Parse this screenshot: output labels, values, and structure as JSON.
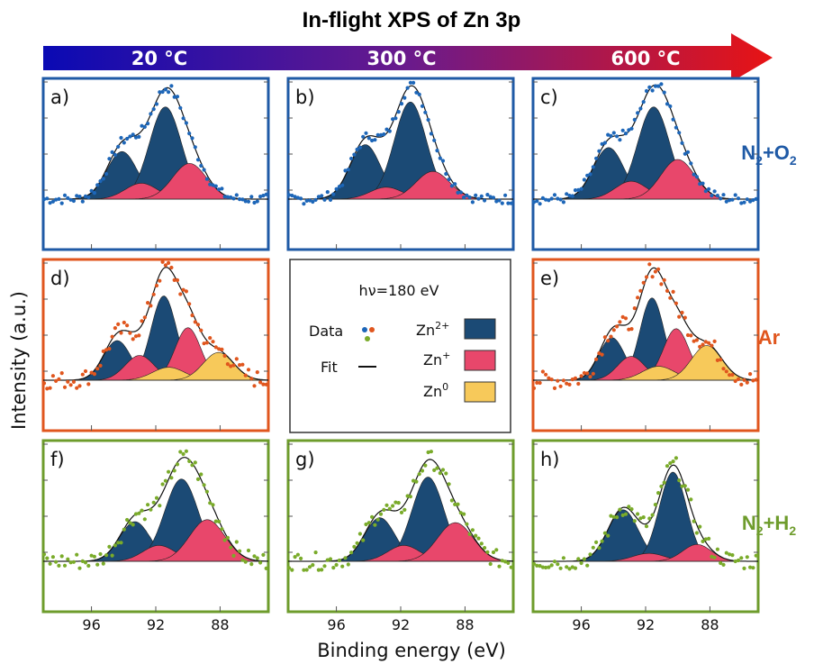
{
  "title": "In-flight XPS of Zn 3p",
  "temperatures": [
    "20 °C",
    "300 °C",
    "600 °C"
  ],
  "gradient_colors": [
    "#0a0ab4",
    "#6a1a8c",
    "#e81414"
  ],
  "atmospheres": [
    {
      "label": "N2+O2",
      "main": "N",
      "sub1": "2",
      "mid": "+O",
      "sub2": "2",
      "color": "#1f5aa6"
    },
    {
      "label": "Ar",
      "main": "Ar",
      "sub1": "",
      "mid": "",
      "sub2": "",
      "color": "#e0561e"
    },
    {
      "label": "N2+H2",
      "main": "N",
      "sub1": "2",
      "mid": "+H",
      "sub2": "2",
      "color": "#6e9c2c"
    }
  ],
  "xlabel": "Binding energy (eV)",
  "ylabel": "Intensity (a.u.)",
  "legend": {
    "photon_energy": "hν=180 eV",
    "data_label": "Data",
    "fit_label": "Fit",
    "zn2_label": "Zn",
    "zn2_sup": "2+",
    "zn1_label": "Zn",
    "zn1_sup": "+",
    "zn0_label": "Zn",
    "zn0_sup": "0"
  },
  "colors": {
    "zn2": "#1b4a75",
    "zn1": "#e8476b",
    "zn0": "#f7c95a",
    "fit": "#111111",
    "data_o2": "#1d66b8",
    "data_ar": "#e0561e",
    "data_h2": "#7aab2a"
  },
  "chart_data": {
    "type": "scatter",
    "xlim": [
      99,
      85
    ],
    "xticks": [
      96,
      92,
      88
    ],
    "grid": false,
    "panels": [
      {
        "label": "a)",
        "row": 0,
        "col": 0,
        "atmosphere": "N2+O2",
        "temperature": "20 °C",
        "xticks_shown": false,
        "peaks": [
          {
            "species": "Zn2+",
            "center": 94.1,
            "height": 0.48,
            "sigma": 0.95
          },
          {
            "species": "Zn2+",
            "center": 91.4,
            "height": 0.93,
            "sigma": 1.0
          },
          {
            "species": "Zn+",
            "center": 92.9,
            "height": 0.16,
            "sigma": 1.0
          },
          {
            "species": "Zn+",
            "center": 89.9,
            "height": 0.36,
            "sigma": 1.05
          }
        ]
      },
      {
        "label": "b)",
        "row": 0,
        "col": 1,
        "atmosphere": "N2+O2",
        "temperature": "300 °C",
        "xticks_shown": false,
        "peaks": [
          {
            "species": "Zn2+",
            "center": 94.2,
            "height": 0.55,
            "sigma": 0.95
          },
          {
            "species": "Zn2+",
            "center": 91.4,
            "height": 0.98,
            "sigma": 1.0
          },
          {
            "species": "Zn+",
            "center": 92.9,
            "height": 0.12,
            "sigma": 1.0
          },
          {
            "species": "Zn+",
            "center": 90.0,
            "height": 0.28,
            "sigma": 1.05
          }
        ]
      },
      {
        "label": "c)",
        "row": 0,
        "col": 2,
        "atmosphere": "N2+O2",
        "temperature": "600 °C",
        "xticks_shown": false,
        "peaks": [
          {
            "species": "Zn2+",
            "center": 94.3,
            "height": 0.52,
            "sigma": 0.95
          },
          {
            "species": "Zn2+",
            "center": 91.5,
            "height": 0.93,
            "sigma": 1.0
          },
          {
            "species": "Zn+",
            "center": 92.9,
            "height": 0.18,
            "sigma": 1.0
          },
          {
            "species": "Zn+",
            "center": 90.0,
            "height": 0.4,
            "sigma": 1.05
          }
        ]
      },
      {
        "label": "d)",
        "row": 1,
        "col": 0,
        "atmosphere": "Ar",
        "temperature": "20 °C",
        "xticks_shown": false,
        "peaks": [
          {
            "species": "Zn2+",
            "center": 94.4,
            "height": 0.4,
            "sigma": 0.85
          },
          {
            "species": "Zn2+",
            "center": 91.5,
            "height": 0.85,
            "sigma": 0.8
          },
          {
            "species": "Zn+",
            "center": 93.0,
            "height": 0.25,
            "sigma": 0.9
          },
          {
            "species": "Zn+",
            "center": 90.0,
            "height": 0.53,
            "sigma": 0.8
          },
          {
            "species": "Zn0",
            "center": 91.2,
            "height": 0.13,
            "sigma": 1.0
          },
          {
            "species": "Zn0",
            "center": 88.1,
            "height": 0.28,
            "sigma": 0.95
          }
        ]
      },
      {
        "label": "e)",
        "row": 1,
        "col": 2,
        "atmosphere": "Ar",
        "temperature": "600 °C",
        "xticks_shown": false,
        "peaks": [
          {
            "species": "Zn2+",
            "center": 94.1,
            "height": 0.43,
            "sigma": 0.8
          },
          {
            "species": "Zn2+",
            "center": 91.6,
            "height": 0.83,
            "sigma": 0.75
          },
          {
            "species": "Zn+",
            "center": 92.9,
            "height": 0.24,
            "sigma": 0.85
          },
          {
            "species": "Zn+",
            "center": 90.1,
            "height": 0.52,
            "sigma": 0.8
          },
          {
            "species": "Zn0",
            "center": 91.2,
            "height": 0.14,
            "sigma": 1.0
          },
          {
            "species": "Zn0",
            "center": 88.2,
            "height": 0.35,
            "sigma": 0.95
          }
        ]
      },
      {
        "label": "f)",
        "row": 2,
        "col": 0,
        "atmosphere": "N2+H2",
        "temperature": "20 °C",
        "xticks_shown": true,
        "peaks": [
          {
            "species": "Zn2+",
            "center": 93.3,
            "height": 0.4,
            "sigma": 0.95
          },
          {
            "species": "Zn2+",
            "center": 90.4,
            "height": 0.83,
            "sigma": 1.05
          },
          {
            "species": "Zn+",
            "center": 91.8,
            "height": 0.16,
            "sigma": 1.0
          },
          {
            "species": "Zn+",
            "center": 88.8,
            "height": 0.42,
            "sigma": 1.1
          }
        ]
      },
      {
        "label": "g)",
        "row": 2,
        "col": 1,
        "atmosphere": "N2+H2",
        "temperature": "300 °C",
        "xticks_shown": true,
        "peaks": [
          {
            "species": "Zn2+",
            "center": 93.3,
            "height": 0.44,
            "sigma": 0.95
          },
          {
            "species": "Zn2+",
            "center": 90.3,
            "height": 0.85,
            "sigma": 1.0
          },
          {
            "species": "Zn+",
            "center": 91.8,
            "height": 0.16,
            "sigma": 1.0
          },
          {
            "species": "Zn+",
            "center": 88.6,
            "height": 0.39,
            "sigma": 1.1
          }
        ]
      },
      {
        "label": "h)",
        "row": 2,
        "col": 2,
        "atmosphere": "N2+H2",
        "temperature": "600 °C",
        "xticks_shown": true,
        "peaks": [
          {
            "species": "Zn2+",
            "center": 93.4,
            "height": 0.52,
            "sigma": 0.95
          },
          {
            "species": "Zn2+",
            "center": 90.3,
            "height": 0.9,
            "sigma": 0.85
          },
          {
            "species": "Zn+",
            "center": 91.8,
            "height": 0.08,
            "sigma": 1.0
          },
          {
            "species": "Zn+",
            "center": 88.8,
            "height": 0.17,
            "sigma": 0.9
          }
        ]
      }
    ]
  }
}
